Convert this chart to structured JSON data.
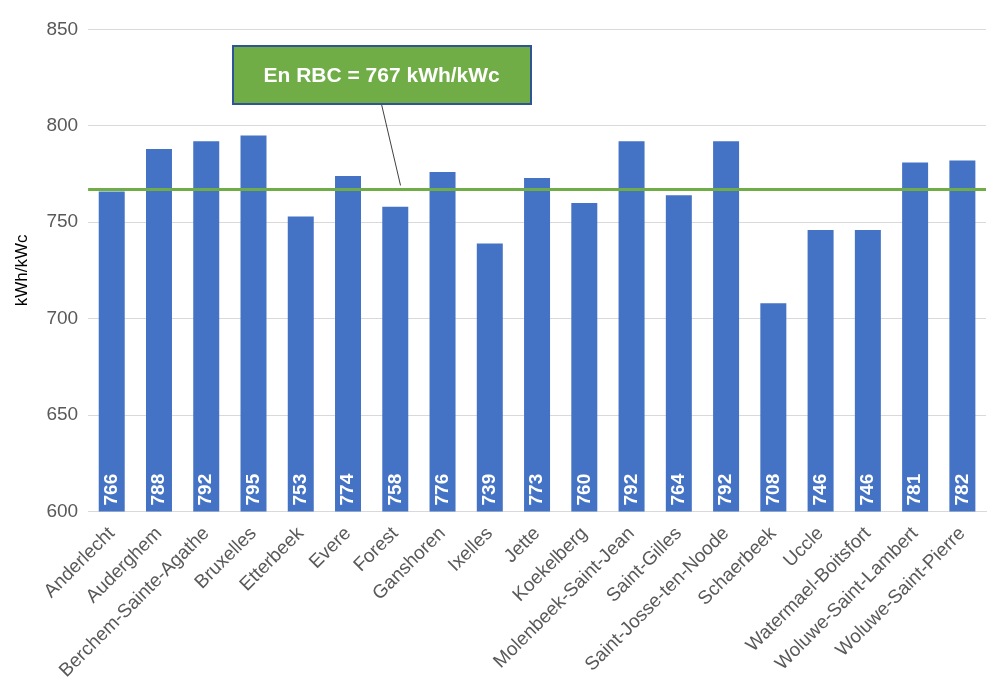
{
  "chart_data": {
    "type": "bar",
    "ylabel": "kWh/kWc",
    "categories": [
      "Anderlecht",
      "Auderghem",
      "Berchem-Sainte-Agathe",
      "Bruxelles",
      "Etterbeek",
      "Evere",
      "Forest",
      "Ganshoren",
      "Ixelles",
      "Jette",
      "Koekelberg",
      "Molenbeek-Saint-Jean",
      "Saint-Gilles",
      "Saint-Josse-ten-Noode",
      "Schaerbeek",
      "Uccle",
      "Watermael-Boitsfort",
      "Woluwe-Saint-Lambert",
      "Woluwe-Saint-Pierre"
    ],
    "values": [
      766,
      788,
      792,
      795,
      753,
      774,
      758,
      776,
      739,
      773,
      760,
      792,
      764,
      792,
      708,
      746,
      746,
      781,
      782
    ],
    "color": "#4472c4",
    "ylim": [
      600,
      850
    ],
    "yticks": [
      600,
      650,
      700,
      750,
      800,
      850
    ],
    "grid": "y",
    "data_labels": true,
    "ref_lines": [
      {
        "axis": "y",
        "value": 767,
        "label": "En RBC = 767 kWh/kWc",
        "color": "#70ad47"
      }
    ]
  }
}
